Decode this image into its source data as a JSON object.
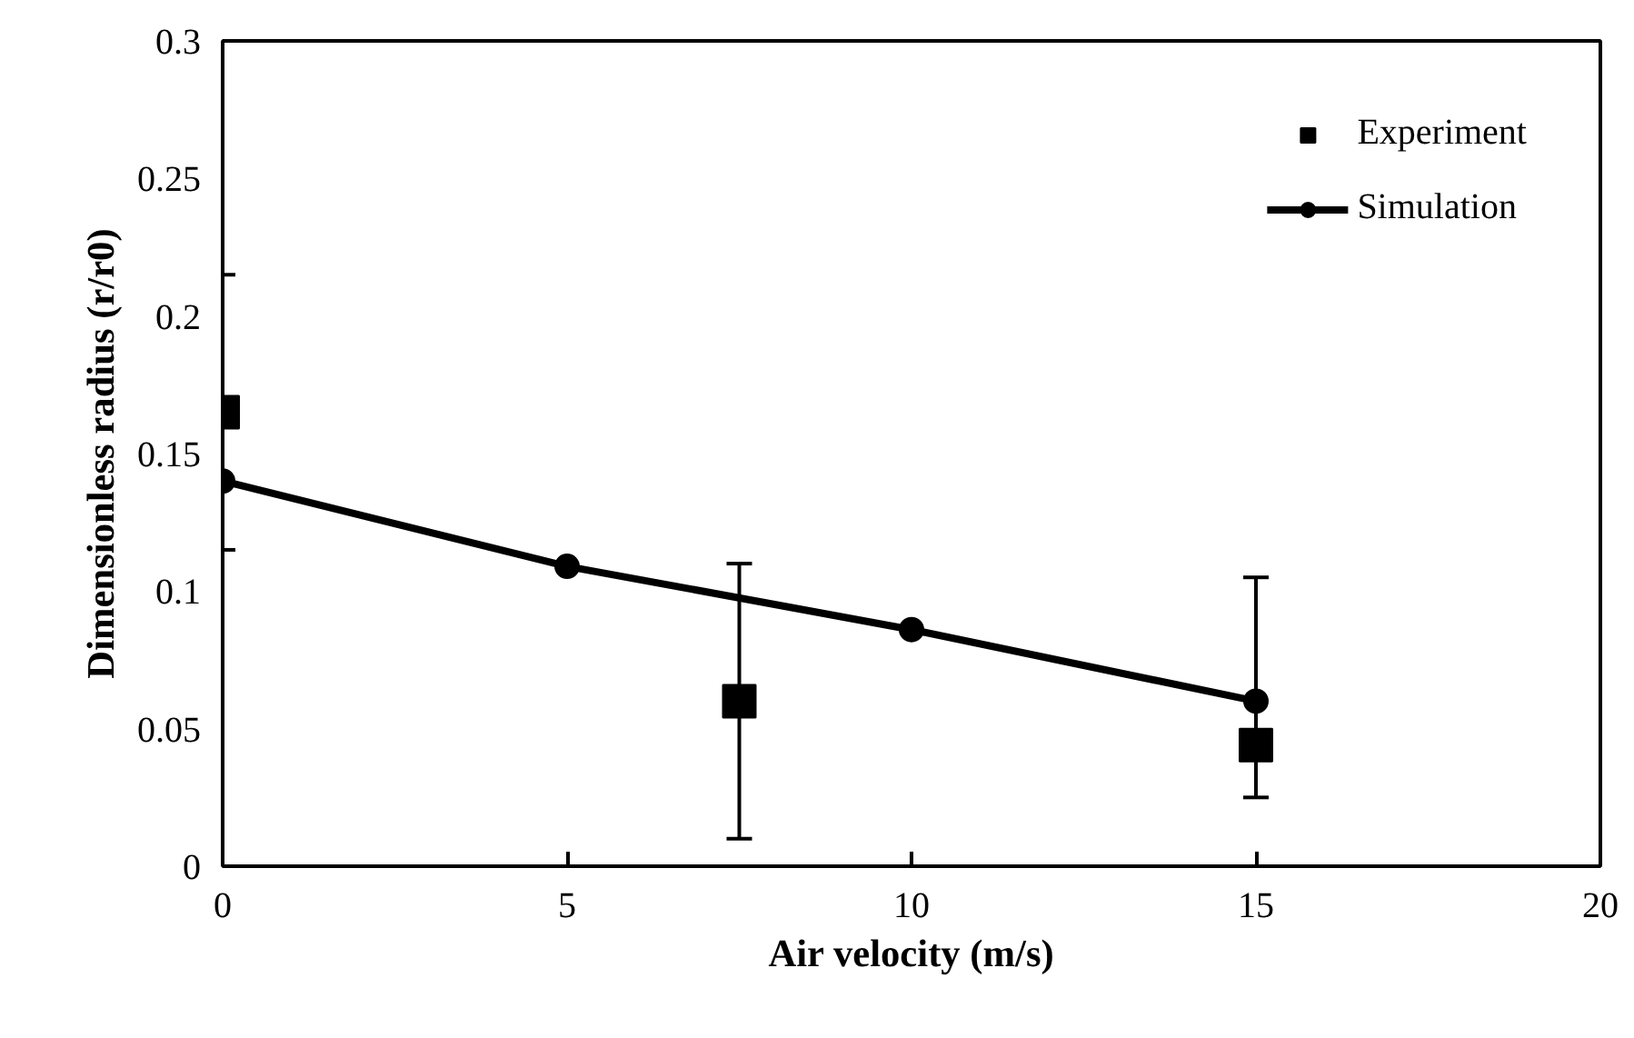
{
  "chart_data": {
    "type": "scatter",
    "xlabel": "Air velocity (m/s)",
    "ylabel": "Dimensionless radius (r/r0)",
    "xlim": [
      0,
      20
    ],
    "xticks": [
      0,
      5,
      10,
      15,
      20
    ],
    "ylim": [
      0,
      0.3
    ],
    "yticks": [
      0,
      0.05,
      0.1,
      0.15,
      0.2,
      0.25,
      0.3
    ],
    "grid": false,
    "legend": "top right",
    "series": [
      {
        "name": "Experiment",
        "marker": "square",
        "color": "#000000",
        "x": [
          0,
          7.5,
          15
        ],
        "values": [
          0.165,
          0.06,
          0.044
        ],
        "errors": [
          0.05,
          0.05,
          [
            0.025,
            0.105
          ]
        ]
      },
      {
        "name": "Simulation",
        "type": "line",
        "marker": "circle",
        "color": "#000000",
        "x": [
          0,
          5,
          10,
          15
        ],
        "values": [
          0.14,
          0.109,
          0.086,
          0.06
        ]
      }
    ]
  }
}
